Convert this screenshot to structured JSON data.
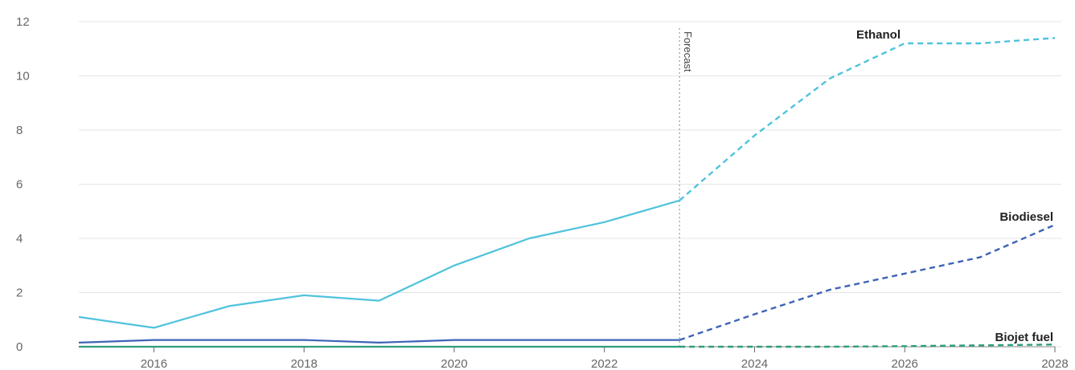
{
  "chart_data": {
    "type": "line",
    "title": "",
    "xlabel": "",
    "ylabel": "",
    "xlim": [
      2015,
      2028
    ],
    "ylim": [
      0,
      12
    ],
    "x_ticks": [
      "2016",
      "2018",
      "2020",
      "2022",
      "2024",
      "2026",
      "2028"
    ],
    "y_ticks": [
      "0",
      "2",
      "4",
      "6",
      "8",
      "10",
      "12"
    ],
    "grid": true,
    "forecast_start": 2023,
    "forecast_label": "Forecast",
    "series": [
      {
        "name": "Ethanol",
        "color": "#4fc3dc",
        "x": [
          2015,
          2016,
          2017,
          2018,
          2019,
          2020,
          2021,
          2022,
          2023,
          2024,
          2025,
          2026,
          2027,
          2028
        ],
        "values": [
          1.1,
          0.7,
          1.5,
          1.9,
          1.7,
          3.0,
          4.0,
          4.6,
          5.4,
          7.8,
          9.9,
          11.2,
          11.2,
          11.4
        ]
      },
      {
        "name": "Biodiesel",
        "color": "#3d63b8",
        "x": [
          2015,
          2016,
          2017,
          2018,
          2019,
          2020,
          2021,
          2022,
          2023,
          2024,
          2025,
          2026,
          2027,
          2028
        ],
        "values": [
          0.15,
          0.25,
          0.25,
          0.25,
          0.15,
          0.25,
          0.25,
          0.25,
          0.25,
          1.2,
          2.1,
          2.7,
          3.3,
          4.5
        ]
      },
      {
        "name": "Biojet fuel",
        "color": "#2e9d7d",
        "x": [
          2015,
          2016,
          2017,
          2018,
          2019,
          2020,
          2021,
          2022,
          2023,
          2024,
          2025,
          2026,
          2027,
          2028
        ],
        "values": [
          0,
          0,
          0,
          0,
          0,
          0,
          0,
          0,
          0,
          0,
          0,
          0.02,
          0.05,
          0.08
        ]
      }
    ]
  }
}
